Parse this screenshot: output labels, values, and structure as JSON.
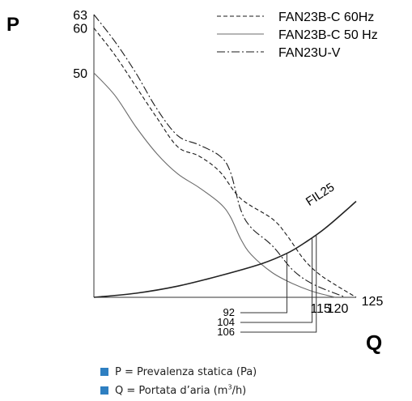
{
  "chart_data": {
    "type": "line",
    "x_axis_label": "Q",
    "y_axis_label": "P",
    "y_ticks": [
      63,
      60,
      50
    ],
    "x_end_labels": [
      115,
      120,
      125
    ],
    "xlim": [
      0,
      125
    ],
    "ylim": [
      0,
      63
    ],
    "series": [
      {
        "name": "FAN23B-C 60Hz",
        "style": "dashed",
        "points": [
          [
            0,
            60
          ],
          [
            10,
            54
          ],
          [
            20,
            47
          ],
          [
            30,
            40
          ],
          [
            40,
            33.5
          ],
          [
            50,
            31.5
          ],
          [
            60,
            28
          ],
          [
            70,
            22
          ],
          [
            85,
            17.5
          ],
          [
            92,
            13.8
          ],
          [
            100,
            8.5
          ],
          [
            107,
            5.3
          ],
          [
            115,
            2.8
          ],
          [
            125,
            0
          ]
        ]
      },
      {
        "name": "FAN23B-C 50 Hz",
        "style": "solid",
        "points": [
          [
            0,
            50
          ],
          [
            10,
            45
          ],
          [
            20,
            38
          ],
          [
            30,
            32
          ],
          [
            40,
            27.5
          ],
          [
            50,
            24.5
          ],
          [
            60,
            21
          ],
          [
            65,
            18
          ],
          [
            70,
            13
          ],
          [
            75,
            9.5
          ],
          [
            85,
            5.5
          ],
          [
            95,
            3
          ],
          [
            105,
            1.2
          ],
          [
            115,
            0
          ]
        ]
      },
      {
        "name": "FAN23U-V",
        "style": "dashdot",
        "points": [
          [
            0,
            63
          ],
          [
            10,
            57
          ],
          [
            20,
            50
          ],
          [
            30,
            42
          ],
          [
            40,
            36
          ],
          [
            50,
            34
          ],
          [
            60,
            31.5
          ],
          [
            65,
            28
          ],
          [
            70,
            19.5
          ],
          [
            75,
            15.5
          ],
          [
            85,
            11.5
          ],
          [
            95,
            6
          ],
          [
            105,
            2.8
          ],
          [
            120,
            0
          ]
        ]
      },
      {
        "name": "FIL25",
        "style": "solid",
        "points": [
          [
            0,
            0
          ],
          [
            20,
            0.9
          ],
          [
            40,
            2.5
          ],
          [
            60,
            4.8
          ],
          [
            80,
            7.5
          ],
          [
            92,
            9.8
          ],
          [
            100,
            12
          ],
          [
            110,
            15.3
          ],
          [
            120,
            19.3
          ],
          [
            125,
            21.4
          ]
        ]
      }
    ],
    "annotations": [
      {
        "label": "92",
        "x": 92
      },
      {
        "label": "104",
        "x": 104
      },
      {
        "label": "106",
        "x": 106
      }
    ],
    "curve_label": "FIL25"
  },
  "legend": {
    "p_line": "P = Prevalenza statica (Pa)",
    "q_prefix": "Q = Portata d’aria (m",
    "q_sup": "3",
    "q_suffix": "/h)",
    "marker_color": "#2e7fc1"
  }
}
